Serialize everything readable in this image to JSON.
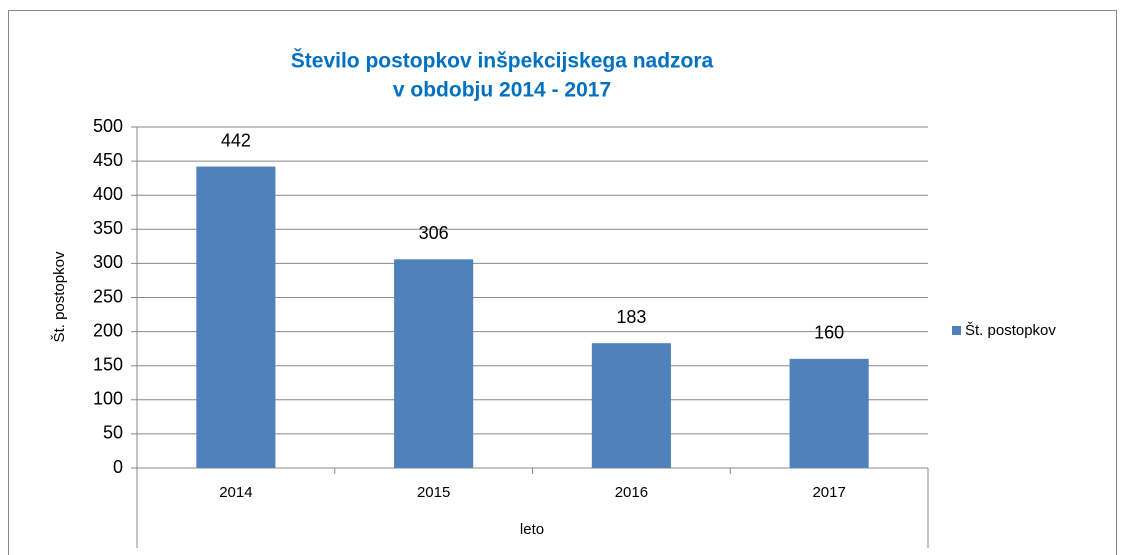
{
  "chart_data": {
    "type": "bar",
    "title": [
      "Število postopkov inšpekcijskega nadzora",
      "v  obdobju 2014 - 2017"
    ],
    "x_label": "leto",
    "y_label": "Št. postopkov",
    "categories": [
      "2014",
      "2015",
      "2016",
      "2017"
    ],
    "series": [
      {
        "name": "Št. postopkov",
        "color": "#4f81bd",
        "values": [
          442,
          306,
          183,
          160
        ]
      }
    ],
    "ylim": [
      0,
      500
    ],
    "yticks": [
      0,
      50,
      100,
      150,
      200,
      250,
      300,
      350,
      400,
      450,
      500
    ],
    "grid": true,
    "legend": "right",
    "data_labels": true
  }
}
